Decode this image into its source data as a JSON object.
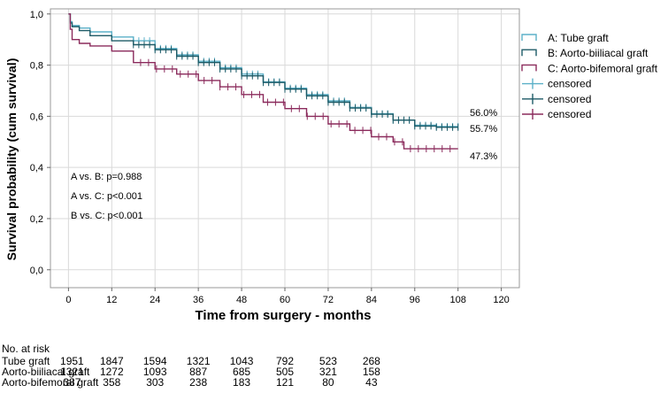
{
  "chart_data": {
    "type": "line",
    "title": "",
    "xlabel": "Time from surgery - months",
    "ylabel": "Survival probability (cum survival)",
    "xlim": [
      -5,
      125
    ],
    "ylim": [
      -0.07,
      1.02
    ],
    "x_ticks": [
      0,
      12,
      24,
      36,
      48,
      60,
      72,
      84,
      96,
      108,
      120
    ],
    "y_ticks": [
      0.0,
      0.2,
      0.4,
      0.6,
      0.8,
      1.0
    ],
    "y_tick_labels": [
      "0,0",
      "0,2",
      "0,4",
      "0,6",
      "0,8",
      "1,0"
    ],
    "grid": true,
    "legend_position": "right",
    "series": [
      {
        "name": "A: Tube graft",
        "censored_label": "censored",
        "color": "#5bb0c8",
        "end_label": "56.0%",
        "points": [
          [
            0,
            1.0
          ],
          [
            0.5,
            0.97
          ],
          [
            1,
            0.955
          ],
          [
            3,
            0.945
          ],
          [
            6,
            0.93
          ],
          [
            12,
            0.91
          ],
          [
            18,
            0.895
          ],
          [
            24,
            0.865
          ],
          [
            30,
            0.84
          ],
          [
            36,
            0.815
          ],
          [
            42,
            0.79
          ],
          [
            48,
            0.765
          ],
          [
            54,
            0.735
          ],
          [
            60,
            0.71
          ],
          [
            66,
            0.685
          ],
          [
            72,
            0.66
          ],
          [
            78,
            0.635
          ],
          [
            84,
            0.61
          ],
          [
            90,
            0.585
          ],
          [
            96,
            0.565
          ],
          [
            102,
            0.56
          ],
          [
            108,
            0.56
          ]
        ]
      },
      {
        "name": "B: Aorto-biiliacal graft",
        "censored_label": "censored",
        "color": "#1d5a66",
        "end_label": "55.7%",
        "points": [
          [
            0,
            1.0
          ],
          [
            0.5,
            0.965
          ],
          [
            1,
            0.95
          ],
          [
            3,
            0.935
          ],
          [
            6,
            0.915
          ],
          [
            12,
            0.895
          ],
          [
            18,
            0.88
          ],
          [
            24,
            0.86
          ],
          [
            30,
            0.835
          ],
          [
            36,
            0.81
          ],
          [
            42,
            0.785
          ],
          [
            48,
            0.758
          ],
          [
            54,
            0.732
          ],
          [
            60,
            0.706
          ],
          [
            66,
            0.68
          ],
          [
            72,
            0.655
          ],
          [
            78,
            0.632
          ],
          [
            84,
            0.608
          ],
          [
            90,
            0.585
          ],
          [
            96,
            0.562
          ],
          [
            102,
            0.557
          ],
          [
            108,
            0.557
          ]
        ]
      },
      {
        "name": "C: Aorto-bifemoral graft",
        "censored_label": "censored",
        "color": "#8b2b5c",
        "end_label": "47.3%",
        "points": [
          [
            0,
            1.0
          ],
          [
            0.5,
            0.94
          ],
          [
            1,
            0.9
          ],
          [
            3,
            0.885
          ],
          [
            6,
            0.875
          ],
          [
            12,
            0.855
          ],
          [
            18,
            0.81
          ],
          [
            24,
            0.785
          ],
          [
            30,
            0.765
          ],
          [
            36,
            0.74
          ],
          [
            42,
            0.715
          ],
          [
            48,
            0.685
          ],
          [
            54,
            0.655
          ],
          [
            60,
            0.63
          ],
          [
            66,
            0.6
          ],
          [
            72,
            0.57
          ],
          [
            78,
            0.545
          ],
          [
            84,
            0.52
          ],
          [
            90,
            0.5
          ],
          [
            93,
            0.473
          ],
          [
            108,
            0.473
          ]
        ]
      }
    ],
    "annotations": [
      "A vs. B: p=0.988",
      "A vs. C: p<0.001",
      "B vs. C: p<0.001"
    ],
    "risk_table": {
      "header": "No. at risk",
      "rows": [
        {
          "label": "Tube graft",
          "values": [
            "1951",
            "1847",
            "1594",
            "1321",
            "1043",
            "792",
            "523",
            "268"
          ]
        },
        {
          "label": "Aorto-biiliacal graft",
          "values": [
            "1321",
            "1272",
            "1093",
            "887",
            "685",
            "505",
            "321",
            "158"
          ]
        },
        {
          "label": "Aorto-bifemoral graft",
          "values": [
            "387",
            "358",
            "303",
            "238",
            "183",
            "121",
            "80",
            "43"
          ]
        }
      ]
    }
  }
}
